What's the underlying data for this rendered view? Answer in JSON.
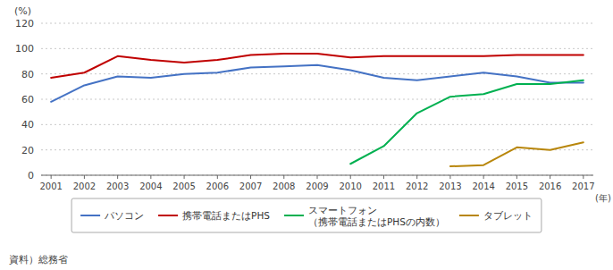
{
  "chart_data": {
    "type": "line",
    "x_label": "(年)",
    "y_label": "(%)",
    "annotations": [
      "資料）総務省"
    ],
    "x": [
      2001,
      2002,
      2003,
      2004,
      2005,
      2006,
      2007,
      2008,
      2009,
      2010,
      2011,
      2012,
      2013,
      2014,
      2015,
      2016,
      2017
    ],
    "series": [
      {
        "name": "パソコン",
        "color": "#4472C4",
        "values": [
          58,
          71,
          78,
          77,
          80,
          81,
          85,
          86,
          87,
          83,
          77,
          75,
          78,
          81,
          78,
          73,
          73
        ]
      },
      {
        "name": "携帯電話またはPHS",
        "color": "#C00000",
        "values": [
          77,
          81,
          94,
          91,
          89,
          91,
          95,
          96,
          96,
          93,
          94,
          94,
          94,
          94,
          95,
          95,
          95
        ]
      },
      {
        "name": "スマートフォン\n（携帯電話またはPHSの内数）",
        "color": "#00B050",
        "values": [
          null,
          null,
          null,
          null,
          null,
          null,
          null,
          null,
          null,
          9,
          23,
          49,
          62,
          64,
          72,
          72,
          75
        ]
      },
      {
        "name": "タブレット",
        "color": "#B8860B",
        "values": [
          null,
          null,
          null,
          null,
          null,
          null,
          null,
          null,
          null,
          null,
          null,
          null,
          7,
          8,
          22,
          20,
          26
        ]
      }
    ],
    "xlim": [
      2000.7,
      2017.3
    ],
    "xticks": [
      2001,
      2002,
      2003,
      2004,
      2005,
      2006,
      2007,
      2008,
      2009,
      2010,
      2011,
      2012,
      2013,
      2014,
      2015,
      2016,
      2017
    ],
    "ylim": [
      0,
      120
    ],
    "yticks": [
      0,
      20,
      40,
      60,
      80,
      100,
      120
    ],
    "grid": true,
    "legend": "bottom"
  }
}
